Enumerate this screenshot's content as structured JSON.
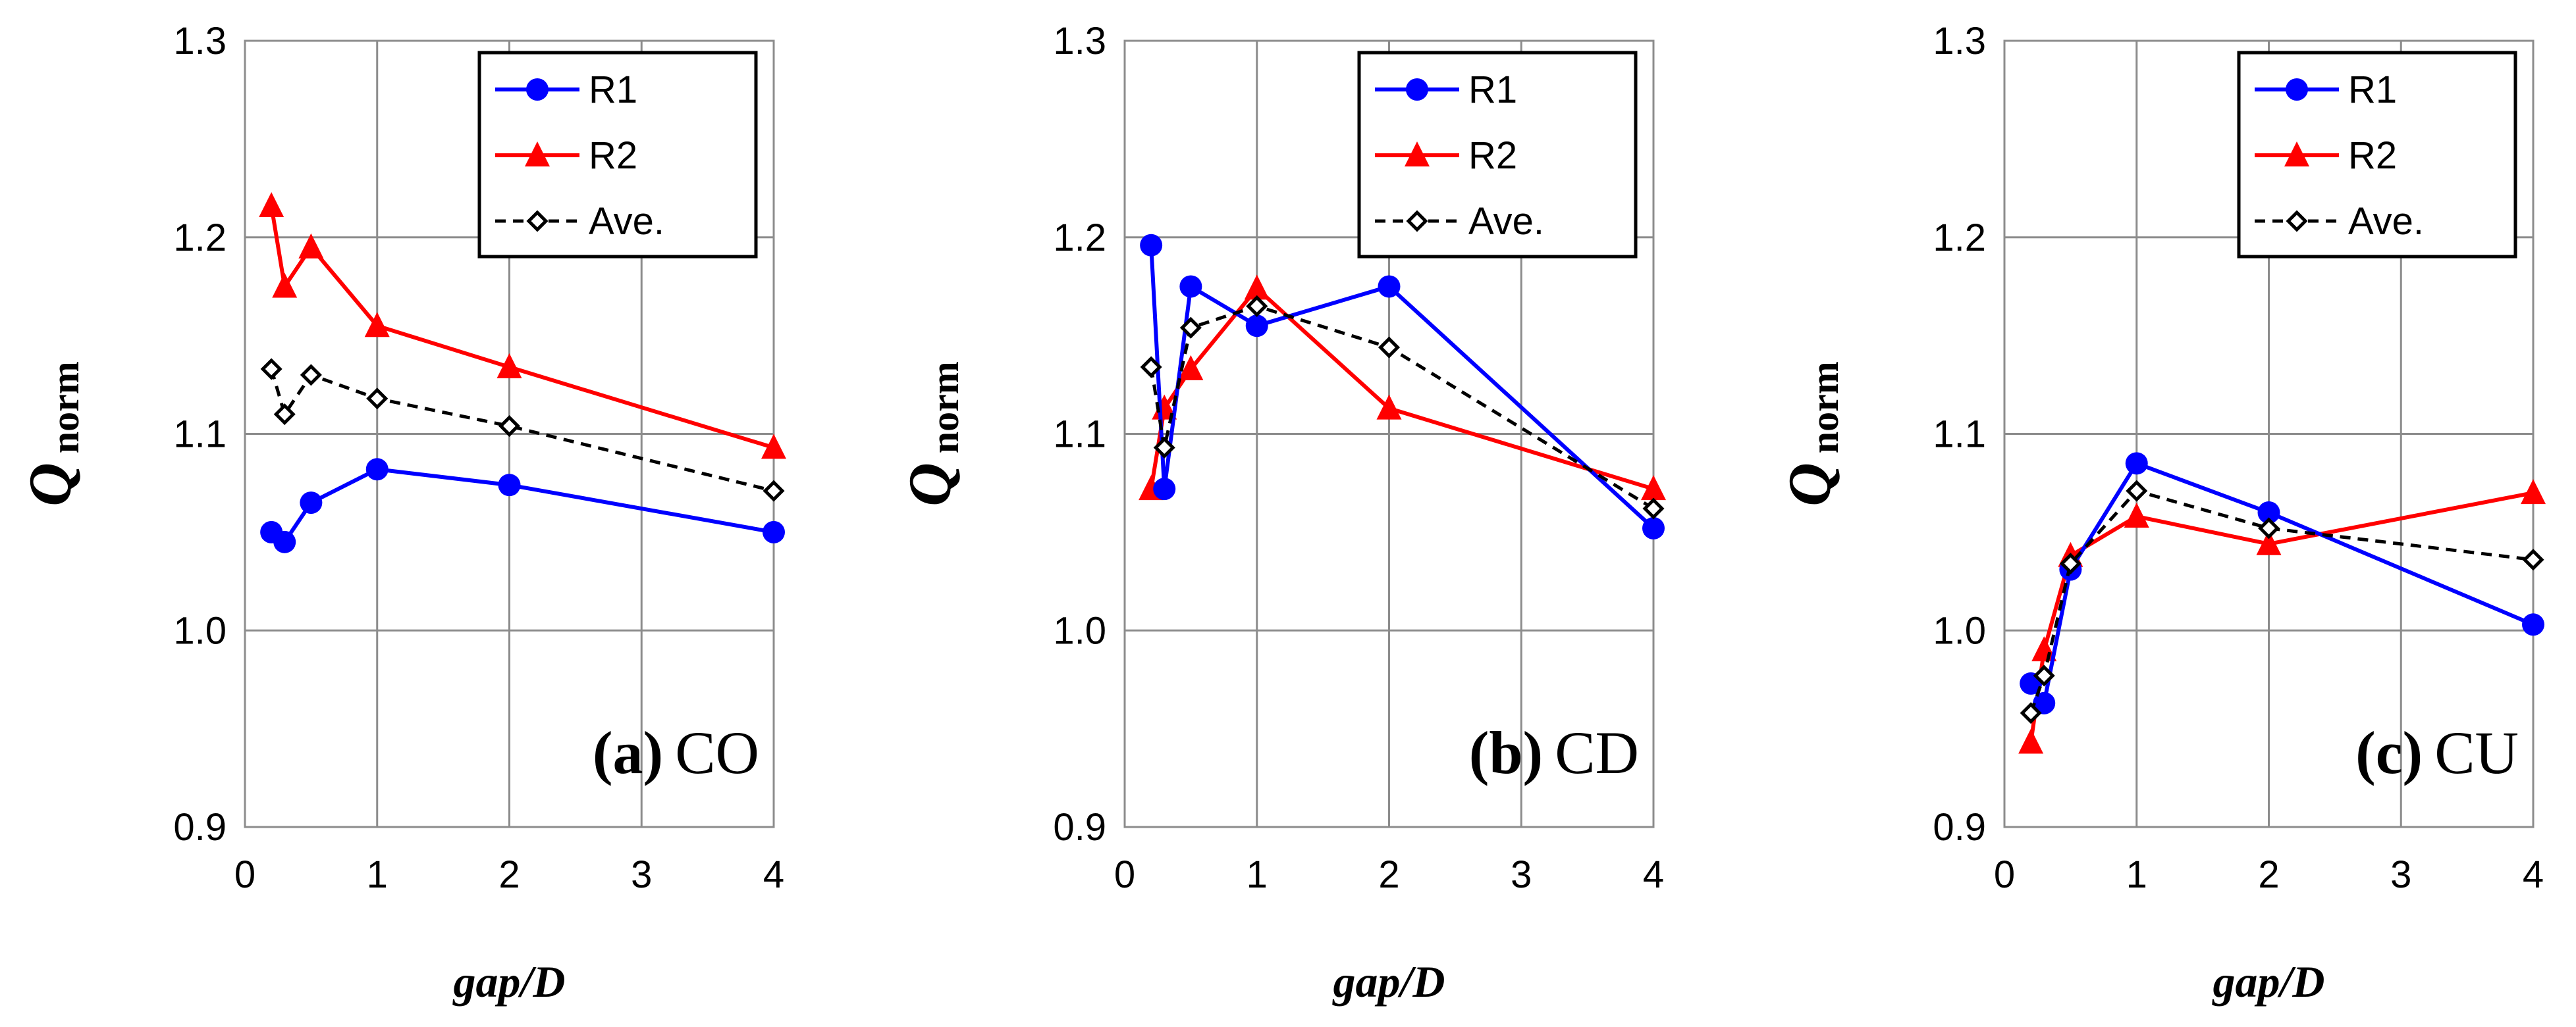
{
  "chart_data": [
    {
      "type": "line",
      "panel_letter": "a",
      "panel_name": "CO",
      "xlabel": "gap/D",
      "ylabel": "Q",
      "ylabel_sub": "norm",
      "xlim": [
        0,
        4
      ],
      "ylim": [
        0.9,
        1.3
      ],
      "xticks": [
        "0",
        "1",
        "2",
        "3",
        "4"
      ],
      "yticks": [
        "0.9",
        "1.0",
        "1.1",
        "1.2",
        "1.3"
      ],
      "grid": true,
      "legend_position": "top-right",
      "x": [
        0.2,
        0.3,
        0.5,
        1,
        2,
        4
      ],
      "series": [
        {
          "name": "R1",
          "color": "#0000ff",
          "marker": "circle",
          "dash": "solid",
          "values": [
            1.05,
            1.045,
            1.065,
            1.082,
            1.074,
            1.05
          ]
        },
        {
          "name": "R2",
          "color": "#ff0000",
          "marker": "triangle",
          "dash": "solid",
          "values": [
            1.216,
            1.175,
            1.195,
            1.155,
            1.134,
            1.093
          ]
        },
        {
          "name": "Ave.",
          "color": "#000000",
          "marker": "diamond",
          "dash": "dashed",
          "values": [
            1.133,
            1.11,
            1.13,
            1.118,
            1.104,
            1.071
          ]
        }
      ]
    },
    {
      "type": "line",
      "panel_letter": "b",
      "panel_name": "CD",
      "xlabel": "gap/D",
      "ylabel": "Q",
      "ylabel_sub": "norm",
      "xlim": [
        0,
        4
      ],
      "ylim": [
        0.9,
        1.3
      ],
      "xticks": [
        "0",
        "1",
        "2",
        "3",
        "4"
      ],
      "yticks": [
        "0.9",
        "1.0",
        "1.1",
        "1.2",
        "1.3"
      ],
      "grid": true,
      "legend_position": "top-right",
      "x": [
        0.2,
        0.3,
        0.5,
        1,
        2,
        4
      ],
      "series": [
        {
          "name": "R1",
          "color": "#0000ff",
          "marker": "circle",
          "dash": "solid",
          "values": [
            1.196,
            1.072,
            1.175,
            1.155,
            1.175,
            1.052
          ]
        },
        {
          "name": "R2",
          "color": "#ff0000",
          "marker": "triangle",
          "dash": "solid",
          "values": [
            1.072,
            1.113,
            1.133,
            1.174,
            1.113,
            1.072
          ]
        },
        {
          "name": "Ave.",
          "color": "#000000",
          "marker": "diamond",
          "dash": "dashed",
          "values": [
            1.134,
            1.093,
            1.154,
            1.165,
            1.144,
            1.062
          ]
        }
      ]
    },
    {
      "type": "line",
      "panel_letter": "c",
      "panel_name": "CU",
      "xlabel": "gap/D",
      "ylabel": "Q",
      "ylabel_sub": "norm",
      "xlim": [
        0,
        4
      ],
      "ylim": [
        0.9,
        1.3
      ],
      "xticks": [
        "0",
        "1",
        "2",
        "3",
        "4"
      ],
      "yticks": [
        "0.9",
        "1.0",
        "1.1",
        "1.2",
        "1.3"
      ],
      "grid": true,
      "legend_position": "top-right",
      "x": [
        0.2,
        0.3,
        0.5,
        1,
        2,
        4
      ],
      "series": [
        {
          "name": "R1",
          "color": "#0000ff",
          "marker": "circle",
          "dash": "solid",
          "values": [
            0.973,
            0.963,
            1.031,
            1.085,
            1.06,
            1.003
          ]
        },
        {
          "name": "R2",
          "color": "#ff0000",
          "marker": "triangle",
          "dash": "solid",
          "values": [
            0.943,
            0.99,
            1.038,
            1.058,
            1.044,
            1.07
          ]
        },
        {
          "name": "Ave.",
          "color": "#000000",
          "marker": "diamond",
          "dash": "dashed",
          "values": [
            0.958,
            0.977,
            1.034,
            1.071,
            1.052,
            1.036
          ]
        }
      ]
    }
  ]
}
